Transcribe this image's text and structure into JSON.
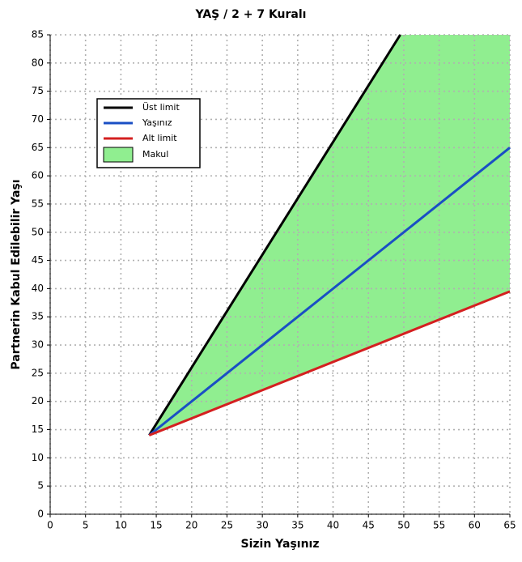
{
  "chart_data": {
    "type": "line",
    "title": "YAŞ / 2 + 7 Kuralı",
    "x_label": "Sizin Yaşınız",
    "y_label": "Partnerin Kabul Edilebilir Yaşı",
    "xlim": [
      0,
      65
    ],
    "ylim": [
      0,
      85
    ],
    "xticks": [
      0,
      5,
      10,
      15,
      20,
      25,
      30,
      35,
      40,
      45,
      50,
      55,
      60,
      65
    ],
    "yticks": [
      0,
      5,
      10,
      15,
      20,
      25,
      30,
      35,
      40,
      45,
      50,
      55,
      60,
      65,
      70,
      75,
      80,
      85
    ],
    "grid": true,
    "legend": "upper left",
    "area": {
      "name": "Makul",
      "color": "#90ee90",
      "x": [
        14,
        49.5,
        65,
        65
      ],
      "values": [
        14,
        85,
        85,
        39.5
      ]
    },
    "series": [
      {
        "name": "Üst limit",
        "color": "#000000",
        "x": [
          14,
          49.5
        ],
        "values": [
          14,
          85
        ]
      },
      {
        "name": "Yaşınız",
        "color": "#1a4fc4",
        "x": [
          14,
          65
        ],
        "values": [
          14,
          65
        ]
      },
      {
        "name": "Alt limit",
        "color": "#d42020",
        "x": [
          14,
          65
        ],
        "values": [
          14,
          39.5
        ]
      }
    ]
  }
}
